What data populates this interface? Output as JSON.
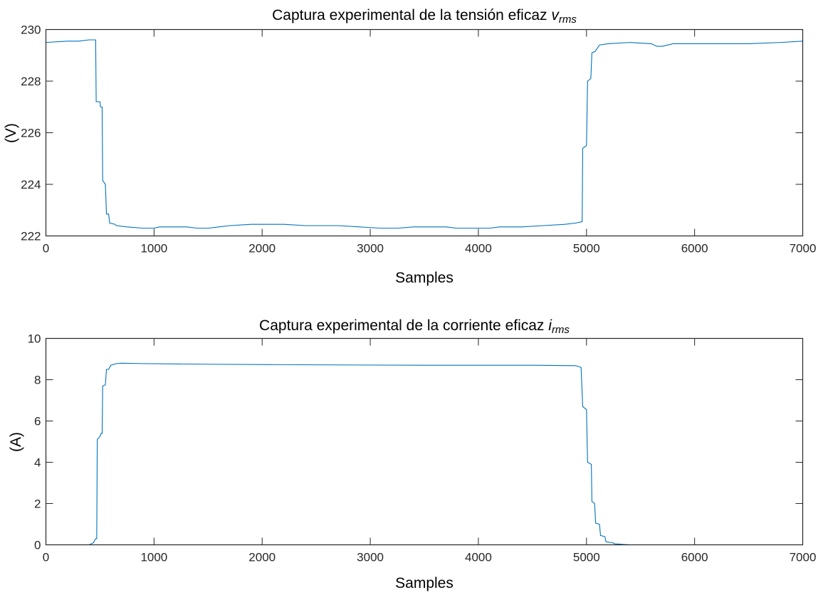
{
  "chart_data": [
    {
      "type": "line",
      "title": {
        "text": "Captura experimental  de la tensión eficaz ",
        "symbol": "v",
        "subscript": "rms"
      },
      "xlabel": "Samples",
      "ylabel": "(V)",
      "xlim": [
        0,
        7000
      ],
      "ylim": [
        222,
        230
      ],
      "xticks": [
        0,
        1000,
        2000,
        3000,
        4000,
        5000,
        6000,
        7000
      ],
      "yticks": [
        222,
        224,
        226,
        228,
        230
      ],
      "grid": false,
      "line_color": "#0072BD",
      "series": [
        {
          "points": [
            [
              0,
              229.5
            ],
            [
              200,
              229.55
            ],
            [
              300,
              229.55
            ],
            [
              400,
              229.6
            ],
            [
              460,
              229.6
            ],
            [
              465,
              227.2
            ],
            [
              500,
              227.2
            ],
            [
              505,
              227.0
            ],
            [
              520,
              227.0
            ],
            [
              525,
              224.15
            ],
            [
              550,
              224.0
            ],
            [
              560,
              222.85
            ],
            [
              580,
              222.85
            ],
            [
              590,
              222.5
            ],
            [
              640,
              222.45
            ],
            [
              650,
              222.4
            ],
            [
              750,
              222.35
            ],
            [
              900,
              222.3
            ],
            [
              1000,
              222.3
            ],
            [
              1050,
              222.35
            ],
            [
              1300,
              222.35
            ],
            [
              1400,
              222.3
            ],
            [
              1500,
              222.3
            ],
            [
              1600,
              222.35
            ],
            [
              1700,
              222.4
            ],
            [
              1900,
              222.45
            ],
            [
              2200,
              222.45
            ],
            [
              2400,
              222.4
            ],
            [
              2700,
              222.4
            ],
            [
              2900,
              222.35
            ],
            [
              3100,
              222.3
            ],
            [
              3250,
              222.3
            ],
            [
              3400,
              222.35
            ],
            [
              3700,
              222.35
            ],
            [
              3800,
              222.3
            ],
            [
              4000,
              222.3
            ],
            [
              4100,
              222.3
            ],
            [
              4200,
              222.35
            ],
            [
              4400,
              222.35
            ],
            [
              4600,
              222.4
            ],
            [
              4800,
              222.45
            ],
            [
              4900,
              222.5
            ],
            [
              4960,
              222.55
            ],
            [
              4965,
              225.4
            ],
            [
              5000,
              225.5
            ],
            [
              5010,
              228.0
            ],
            [
              5040,
              228.1
            ],
            [
              5050,
              229.1
            ],
            [
              5080,
              229.15
            ],
            [
              5120,
              229.4
            ],
            [
              5200,
              229.45
            ],
            [
              5400,
              229.5
            ],
            [
              5600,
              229.45
            ],
            [
              5650,
              229.35
            ],
            [
              5700,
              229.35
            ],
            [
              5800,
              229.45
            ],
            [
              6000,
              229.45
            ],
            [
              6300,
              229.45
            ],
            [
              6500,
              229.45
            ],
            [
              6800,
              229.5
            ],
            [
              7000,
              229.55
            ]
          ]
        }
      ]
    },
    {
      "type": "line",
      "title": {
        "text": "Captura experimental  de la corriente eficaz ",
        "symbol": "i",
        "subscript": "rms"
      },
      "xlabel": "Samples",
      "ylabel": "(A)",
      "xlim": [
        0,
        7000
      ],
      "ylim": [
        0,
        10
      ],
      "xticks": [
        0,
        1000,
        2000,
        3000,
        4000,
        5000,
        6000,
        7000
      ],
      "yticks": [
        0,
        2,
        4,
        6,
        8,
        10
      ],
      "grid": false,
      "line_color": "#0072BD",
      "series": [
        {
          "points": [
            [
              0,
              0
            ],
            [
              400,
              0
            ],
            [
              440,
              0.1
            ],
            [
              460,
              0.3
            ],
            [
              470,
              0.3
            ],
            [
              475,
              5.1
            ],
            [
              500,
              5.25
            ],
            [
              510,
              5.4
            ],
            [
              520,
              5.4
            ],
            [
              525,
              7.7
            ],
            [
              550,
              7.75
            ],
            [
              560,
              8.5
            ],
            [
              580,
              8.5
            ],
            [
              600,
              8.7
            ],
            [
              650,
              8.78
            ],
            [
              700,
              8.8
            ],
            [
              900,
              8.78
            ],
            [
              1500,
              8.75
            ],
            [
              2500,
              8.72
            ],
            [
              3500,
              8.7
            ],
            [
              4500,
              8.7
            ],
            [
              4900,
              8.68
            ],
            [
              4950,
              8.6
            ],
            [
              4965,
              6.7
            ],
            [
              5000,
              6.55
            ],
            [
              5010,
              4.0
            ],
            [
              5045,
              3.9
            ],
            [
              5050,
              2.1
            ],
            [
              5075,
              2.0
            ],
            [
              5085,
              1.05
            ],
            [
              5120,
              1.0
            ],
            [
              5130,
              0.45
            ],
            [
              5170,
              0.4
            ],
            [
              5180,
              0.15
            ],
            [
              5240,
              0.1
            ],
            [
              5260,
              0.05
            ],
            [
              5400,
              0
            ],
            [
              7000,
              0
            ]
          ]
        }
      ]
    }
  ]
}
